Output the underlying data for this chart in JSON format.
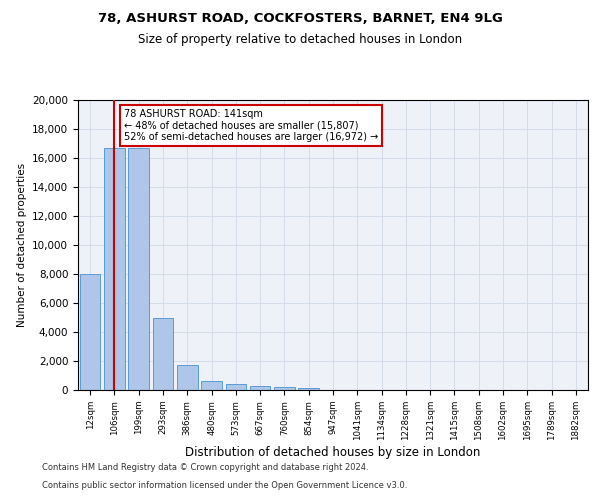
{
  "title1": "78, ASHURST ROAD, COCKFOSTERS, BARNET, EN4 9LG",
  "title2": "Size of property relative to detached houses in London",
  "xlabel": "Distribution of detached houses by size in London",
  "ylabel": "Number of detached properties",
  "categories": [
    "12sqm",
    "106sqm",
    "199sqm",
    "293sqm",
    "386sqm",
    "480sqm",
    "573sqm",
    "667sqm",
    "760sqm",
    "854sqm",
    "947sqm",
    "1041sqm",
    "1134sqm",
    "1228sqm",
    "1321sqm",
    "1415sqm",
    "1508sqm",
    "1602sqm",
    "1695sqm",
    "1789sqm",
    "1882sqm"
  ],
  "values": [
    8000,
    16700,
    16700,
    5000,
    1700,
    600,
    400,
    280,
    180,
    120,
    0,
    0,
    0,
    0,
    0,
    0,
    0,
    0,
    0,
    0,
    0
  ],
  "bar_color": "#aec6e8",
  "bar_edge_color": "#5b9bd5",
  "ref_line_x": 1,
  "ref_line_color": "#cc0000",
  "annotation_text": "78 ASHURST ROAD: 141sqm\n← 48% of detached houses are smaller (15,807)\n52% of semi-detached houses are larger (16,972) →",
  "annotation_box_color": "#ffffff",
  "annotation_box_edge": "#cc0000",
  "ylim": [
    0,
    20000
  ],
  "yticks": [
    0,
    2000,
    4000,
    6000,
    8000,
    10000,
    12000,
    14000,
    16000,
    18000,
    20000
  ],
  "footer1": "Contains HM Land Registry data © Crown copyright and database right 2024.",
  "footer2": "Contains public sector information licensed under the Open Government Licence v3.0.",
  "grid_color": "#d0d8e8",
  "background_color": "#eef2f8"
}
